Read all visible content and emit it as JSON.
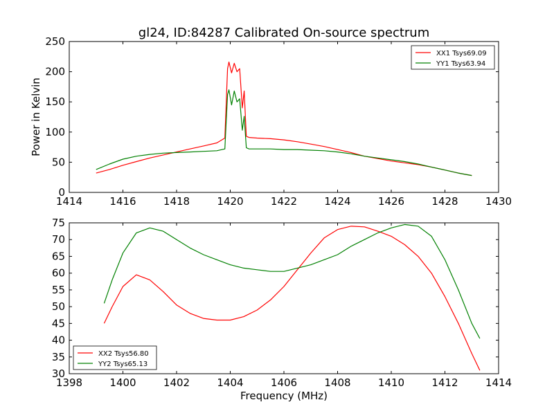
{
  "figure": {
    "title": "gl24, ID:84287 Calibrated On-source spectrum"
  },
  "colors": {
    "red": "#ff0000",
    "green": "#008000"
  },
  "chart_data": [
    {
      "type": "line",
      "ylabel": "Power in Kelvin",
      "xlabel": "",
      "xlim": [
        1414,
        1430
      ],
      "ylim": [
        0,
        250
      ],
      "xticks": [
        1414,
        1416,
        1418,
        1420,
        1422,
        1424,
        1426,
        1428,
        1430
      ],
      "yticks": [
        0,
        50,
        100,
        150,
        200,
        250
      ],
      "grid": false,
      "legend": "top-right",
      "series": [
        {
          "name": "XX1 Tsys69.09",
          "color": "#ff0000",
          "x": [
            1415.0,
            1415.5,
            1416.0,
            1416.5,
            1417.0,
            1417.5,
            1418.0,
            1418.5,
            1419.0,
            1419.5,
            1419.8,
            1419.9,
            1419.95,
            1420.05,
            1420.15,
            1420.25,
            1420.35,
            1420.45,
            1420.52,
            1420.6,
            1420.7,
            1421.0,
            1421.5,
            1422.0,
            1422.5,
            1423.0,
            1423.5,
            1424.0,
            1424.5,
            1425.0,
            1425.5,
            1426.0,
            1426.5,
            1427.0,
            1427.5,
            1428.0,
            1428.5,
            1429.0
          ],
          "y": [
            32,
            38,
            45,
            51,
            57,
            62,
            67,
            72,
            77,
            82,
            90,
            205,
            216,
            198,
            214,
            200,
            205,
            140,
            168,
            93,
            91,
            90,
            89,
            87,
            84,
            80,
            76,
            71,
            66,
            60,
            56,
            52,
            49,
            46,
            42,
            37,
            32,
            28
          ]
        },
        {
          "name": "YY1 Tsys63.94",
          "color": "#008000",
          "x": [
            1415.0,
            1415.5,
            1416.0,
            1416.5,
            1417.0,
            1417.5,
            1418.0,
            1418.5,
            1419.0,
            1419.5,
            1419.8,
            1419.9,
            1419.95,
            1420.05,
            1420.15,
            1420.25,
            1420.35,
            1420.45,
            1420.52,
            1420.6,
            1420.7,
            1421.0,
            1421.5,
            1422.0,
            1422.5,
            1423.0,
            1423.5,
            1424.0,
            1424.5,
            1425.0,
            1425.5,
            1426.0,
            1426.5,
            1427.0,
            1427.5,
            1428.0,
            1428.5,
            1429.0
          ],
          "y": [
            38,
            47,
            55,
            60,
            63,
            65,
            66,
            67,
            68,
            69,
            72,
            162,
            170,
            145,
            168,
            150,
            155,
            103,
            126,
            74,
            72,
            72,
            72,
            71,
            71,
            70,
            69,
            67,
            64,
            60,
            57,
            54,
            51,
            47,
            42,
            37,
            32,
            28
          ]
        }
      ]
    },
    {
      "type": "line",
      "ylabel": "",
      "xlabel": "Frequency (MHz)",
      "xlim": [
        1398,
        1414
      ],
      "ylim": [
        30,
        75
      ],
      "xticks": [
        1398,
        1400,
        1402,
        1404,
        1406,
        1408,
        1410,
        1412,
        1414
      ],
      "yticks": [
        30,
        35,
        40,
        45,
        50,
        55,
        60,
        65,
        70,
        75
      ],
      "grid": false,
      "legend": "bottom-left",
      "series": [
        {
          "name": "XX2 Tsys56.80",
          "color": "#ff0000",
          "x": [
            1399.3,
            1399.6,
            1400.0,
            1400.5,
            1401.0,
            1401.5,
            1402.0,
            1402.5,
            1403.0,
            1403.5,
            1404.0,
            1404.5,
            1405.0,
            1405.5,
            1406.0,
            1406.5,
            1407.0,
            1407.5,
            1408.0,
            1408.5,
            1409.0,
            1409.5,
            1410.0,
            1410.5,
            1411.0,
            1411.5,
            1412.0,
            1412.5,
            1413.0,
            1413.3
          ],
          "y": [
            45,
            50,
            56,
            59.5,
            58,
            54.5,
            50.5,
            48,
            46.5,
            46,
            46,
            47,
            49,
            52,
            56,
            61,
            66,
            70.5,
            73,
            74,
            73.8,
            72.5,
            71,
            68.5,
            65,
            60,
            53,
            45,
            36,
            31
          ]
        },
        {
          "name": "YY2 Tsys65.13",
          "color": "#008000",
          "x": [
            1399.3,
            1399.6,
            1400.0,
            1400.5,
            1401.0,
            1401.5,
            1402.0,
            1402.5,
            1403.0,
            1403.5,
            1404.0,
            1404.5,
            1405.0,
            1405.5,
            1406.0,
            1406.5,
            1407.0,
            1407.5,
            1408.0,
            1408.5,
            1409.0,
            1409.5,
            1410.0,
            1410.5,
            1411.0,
            1411.5,
            1412.0,
            1412.5,
            1413.0,
            1413.3
          ],
          "y": [
            51,
            58,
            66,
            72,
            73.5,
            72.5,
            70,
            67.5,
            65.5,
            64,
            62.5,
            61.5,
            61,
            60.5,
            60.5,
            61.5,
            62.5,
            64,
            65.5,
            68,
            70,
            72,
            73.5,
            74.5,
            74,
            71,
            64,
            55,
            45,
            40.5
          ]
        }
      ]
    }
  ]
}
